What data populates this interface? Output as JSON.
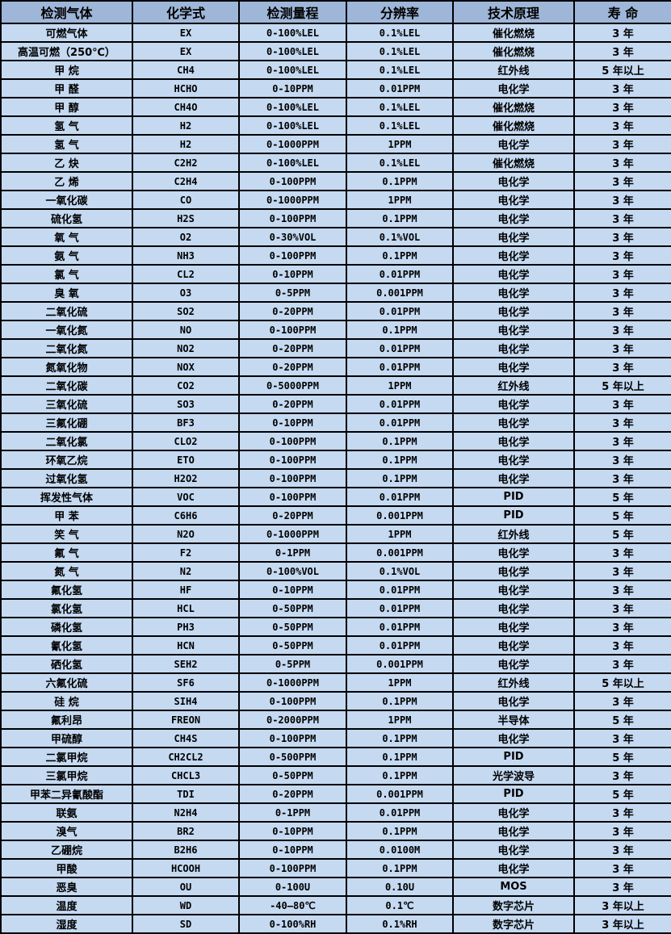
{
  "colors": {
    "header_bg": "#9eb6d8",
    "row_bg": "#c5d9f1",
    "border": "#000000",
    "text": "#000000"
  },
  "table": {
    "columns": [
      {
        "key": "gas",
        "label": "检测气体",
        "width": 163
      },
      {
        "key": "formula",
        "label": "化学式",
        "width": 132
      },
      {
        "key": "range",
        "label": "检测量程",
        "width": 133
      },
      {
        "key": "resolution",
        "label": "分辨率",
        "width": 132
      },
      {
        "key": "principle",
        "label": "技术原理",
        "width": 150
      },
      {
        "key": "lifespan",
        "label": "寿 命",
        "width": 121
      }
    ],
    "rows": [
      [
        "可燃气体",
        "EX",
        "0-100%LEL",
        "0.1%LEL",
        "催化燃烧",
        "3 年"
      ],
      [
        "高温可燃（250℃）",
        "EX",
        "0-100%LEL",
        "0.1%LEL",
        "催化燃烧",
        "3 年"
      ],
      [
        "甲 烷",
        "CH4",
        "0-100%LEL",
        "0.1%LEL",
        "红外线",
        "5 年以上"
      ],
      [
        "甲 醛",
        "HCHO",
        "0-10PPM",
        "0.01PPM",
        "电化学",
        "3 年"
      ],
      [
        "甲 醇",
        "CH4O",
        "0-100%LEL",
        "0.1%LEL",
        "催化燃烧",
        "3 年"
      ],
      [
        "氢 气",
        "H2",
        "0-100%LEL",
        "0.1%LEL",
        "催化燃烧",
        "3 年"
      ],
      [
        "氢 气",
        "H2",
        "0-1000PPM",
        "1PPM",
        "电化学",
        "3 年"
      ],
      [
        "乙 炔",
        "C2H2",
        "0-100%LEL",
        "0.1%LEL",
        "催化燃烧",
        "3 年"
      ],
      [
        "乙 烯",
        "C2H4",
        "0-100PPM",
        "0.1PPM",
        "电化学",
        "3 年"
      ],
      [
        "一氧化碳",
        "CO",
        "0-1000PPM",
        "1PPM",
        "电化学",
        "3 年"
      ],
      [
        "硫化氢",
        "H2S",
        "0-100PPM",
        "0.1PPM",
        "电化学",
        "3 年"
      ],
      [
        "氧 气",
        "O2",
        "0-30%VOL",
        "0.1%VOL",
        "电化学",
        "3 年"
      ],
      [
        "氨 气",
        "NH3",
        "0-100PPM",
        "0.1PPM",
        "电化学",
        "3 年"
      ],
      [
        "氯 气",
        "CL2",
        "0-10PPM",
        "0.01PPM",
        "电化学",
        "3 年"
      ],
      [
        "臭 氧",
        "O3",
        "0-5PPM",
        "0.001PPM",
        "电化学",
        "3 年"
      ],
      [
        "二氧化硫",
        "SO2",
        "0-20PPM",
        "0.01PPM",
        "电化学",
        "3 年"
      ],
      [
        "一氧化氮",
        "NO",
        "0-100PPM",
        "0.1PPM",
        "电化学",
        "3 年"
      ],
      [
        "二氧化氮",
        "NO2",
        "0-20PPM",
        "0.01PPM",
        "电化学",
        "3 年"
      ],
      [
        "氮氧化物",
        "NOX",
        "0-20PPM",
        "0.01PPM",
        "电化学",
        "3 年"
      ],
      [
        "二氧化碳",
        "CO2",
        "0-5000PPM",
        "1PPM",
        "红外线",
        "5 年以上"
      ],
      [
        "三氧化硫",
        "SO3",
        "0-20PPM",
        "0.01PPM",
        "电化学",
        "3 年"
      ],
      [
        "三氟化硼",
        "BF3",
        "0-10PPM",
        "0.01PPM",
        "电化学",
        "3 年"
      ],
      [
        "二氧化氯",
        "CLO2",
        "0-100PPM",
        "0.1PPM",
        "电化学",
        "3 年"
      ],
      [
        "环氧乙烷",
        "ETO",
        "0-100PPM",
        "0.1PPM",
        "电化学",
        "3 年"
      ],
      [
        "过氧化氢",
        "H2O2",
        "0-100PPM",
        "0.1PPM",
        "电化学",
        "3 年"
      ],
      [
        "挥发性气体",
        "VOC",
        "0-100PPM",
        "0.01PPM",
        "PID",
        "5 年"
      ],
      [
        "甲 苯",
        "C6H6",
        "0-20PPM",
        "0.001PPM",
        "PID",
        "5 年"
      ],
      [
        "笑 气",
        "N2O",
        "0-1000PPM",
        "1PPM",
        "红外线",
        "5 年"
      ],
      [
        "氟 气",
        "F2",
        "0-1PPM",
        "0.001PPM",
        "电化学",
        "3 年"
      ],
      [
        "氮 气",
        "N2",
        "0-100%VOL",
        "0.1%VOL",
        "电化学",
        "3 年"
      ],
      [
        "氟化氢",
        "HF",
        "0-10PPM",
        "0.01PPM",
        "电化学",
        "3 年"
      ],
      [
        "氯化氢",
        "HCL",
        "0-50PPM",
        "0.01PPM",
        "电化学",
        "3 年"
      ],
      [
        "磷化氢",
        "PH3",
        "0-50PPM",
        "0.01PPM",
        "电化学",
        "3 年"
      ],
      [
        "氰化氢",
        "HCN",
        "0-50PPM",
        "0.01PPM",
        "电化学",
        "3 年"
      ],
      [
        "硒化氢",
        "SEH2",
        "0-5PPM",
        "0.001PPM",
        "电化学",
        "3 年"
      ],
      [
        "六氟化硫",
        "SF6",
        "0-1000PPM",
        "1PPM",
        "红外线",
        "5 年以上"
      ],
      [
        "硅 烷",
        "SIH4",
        "0-100PPM",
        "0.1PPM",
        "电化学",
        "3 年"
      ],
      [
        "氟利昂",
        "FREON",
        "0-2000PPM",
        "1PPM",
        "半导体",
        "5 年"
      ],
      [
        "甲硫醇",
        "CH4S",
        "0-100PPM",
        "0.1PPM",
        "电化学",
        "3 年"
      ],
      [
        "二氯甲烷",
        "CH2CL2",
        "0-500PPM",
        "0.1PPM",
        "PID",
        "5 年"
      ],
      [
        "三氯甲烷",
        "CHCL3",
        "0-50PPM",
        "0.1PPM",
        "光学波导",
        "3 年"
      ],
      [
        "甲苯二异氰酸酯",
        "TDI",
        "0-20PPM",
        "0.001PPM",
        "PID",
        "5 年"
      ],
      [
        "联氨",
        "N2H4",
        "0-1PPM",
        "0.01PPM",
        "电化学",
        "3 年"
      ],
      [
        "溴气",
        "BR2",
        "0-10PPM",
        "0.1PPM",
        "电化学",
        "3 年"
      ],
      [
        "乙硼烷",
        "B2H6",
        "0-10PPM",
        "0.0100M",
        "电化学",
        "3 年"
      ],
      [
        "甲酸",
        "HCOOH",
        "0-100PPM",
        "0.1PPM",
        "电化学",
        "3 年"
      ],
      [
        "恶臭",
        "OU",
        "0-100U",
        "0.10U",
        "MOS",
        "3 年"
      ],
      [
        "温度",
        "WD",
        "-40—80℃",
        "0.1℃",
        "数字芯片",
        "3 年以上"
      ],
      [
        "湿度",
        "SD",
        "0-100%RH",
        "0.1%RH",
        "数字芯片",
        "3 年以上"
      ]
    ]
  }
}
